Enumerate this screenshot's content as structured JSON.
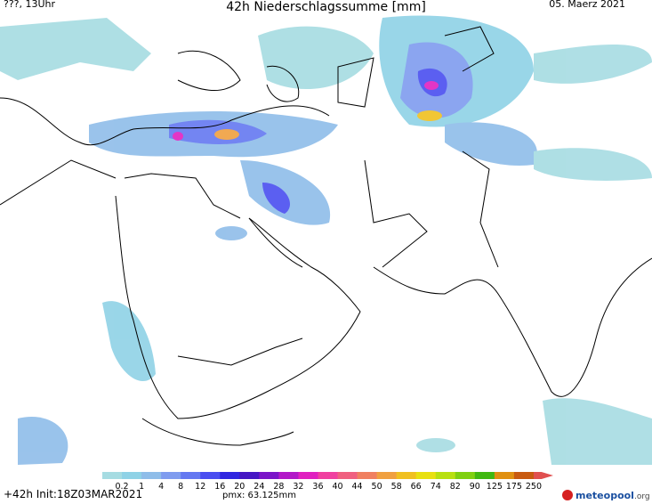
{
  "header": {
    "left": "???, 13Uhr",
    "title": "42h Niederschlagssumme [mm]",
    "date": "05. Maerz 2021"
  },
  "legend": {
    "labels": [
      0.2,
      1,
      4,
      8,
      12,
      16,
      20,
      24,
      28,
      32,
      36,
      40,
      44,
      50,
      58,
      66,
      74,
      82,
      90,
      125,
      175,
      250
    ],
    "colors": [
      "#a6dce2",
      "#8fd2e6",
      "#8fbde9",
      "#7f9cef",
      "#6478f1",
      "#4a4ef0",
      "#3026e0",
      "#4516c4",
      "#7a14c8",
      "#b218c8",
      "#e020c0",
      "#f040a0",
      "#f06080",
      "#f08060",
      "#f0a040",
      "#f0c020",
      "#e8e010",
      "#b8e010",
      "#80d010",
      "#40b810",
      "#e09010",
      "#c85a10",
      "#e05050"
    ]
  },
  "footer": {
    "run": "+42h Init:18Z03MAR2021",
    "pmx": "pmx: 63.125mm",
    "logo_name": "meteopool",
    "logo_suffix": ".org"
  }
}
